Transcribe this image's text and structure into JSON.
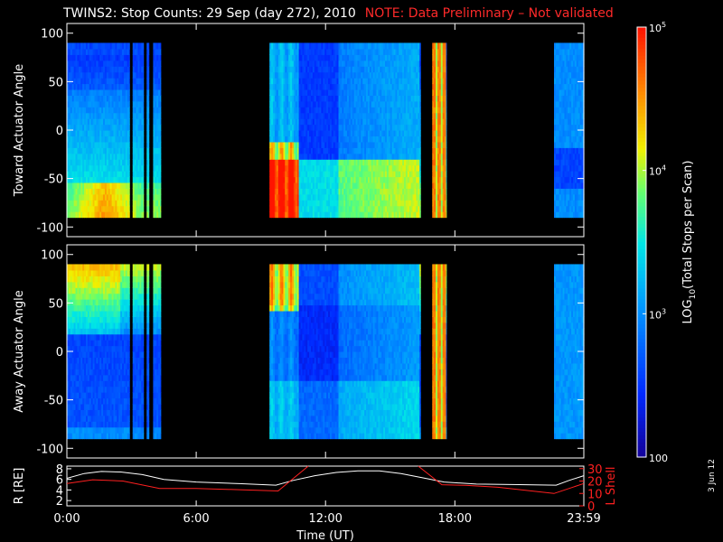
{
  "title": {
    "main": "TWINS2: Stop Counts: 29 Sep (day 272), 2010",
    "note": "NOTE: Data Preliminary – Not validated"
  },
  "date_stamp": "3 Jun 12",
  "colors": {
    "background": "#000000",
    "axes": "#ffffff",
    "note": "#ff2a2a",
    "r_line": "#ffffff",
    "lshell_line": "#ff2020"
  },
  "chart_data": [
    {
      "type": "heatmap",
      "panel": "top",
      "ylabel": "Toward Actuator Angle",
      "y_ticks": [
        -100,
        -50,
        0,
        50,
        100
      ],
      "ylim": [
        -110,
        110
      ],
      "x_range_hours": [
        0,
        23.983
      ],
      "y_data_range": [
        -90,
        90
      ],
      "data_intervals_hours": [
        [
          0.0,
          2.9
        ],
        [
          3.05,
          3.55
        ],
        [
          3.7,
          3.8
        ],
        [
          4.0,
          4.35
        ],
        [
          9.4,
          16.4
        ],
        [
          16.95,
          17.6
        ],
        [
          22.6,
          23.983
        ]
      ]
    },
    {
      "type": "heatmap",
      "panel": "middle",
      "ylabel": "Away Actuator Angle",
      "y_ticks": [
        -100,
        -50,
        0,
        50,
        100
      ],
      "ylim": [
        -110,
        110
      ],
      "x_range_hours": [
        0,
        23.983
      ],
      "y_data_range": [
        -90,
        90
      ],
      "data_intervals_hours": [
        [
          0.0,
          2.9
        ],
        [
          3.05,
          3.55
        ],
        [
          3.7,
          3.8
        ],
        [
          4.0,
          4.35
        ],
        [
          9.4,
          16.4
        ],
        [
          16.95,
          17.6
        ],
        [
          22.6,
          23.983
        ]
      ]
    },
    {
      "type": "line",
      "panel": "bottom",
      "xlabel": "Time (UT)",
      "x_tick_labels": [
        "0:00",
        "6:00",
        "12:00",
        "18:00",
        "23:59"
      ],
      "x_ticks_hours": [
        0,
        6,
        12,
        18,
        23.983
      ],
      "left_axis": {
        "label": "R [RE]",
        "ticks": [
          2,
          4,
          6,
          8
        ],
        "ylim": [
          1,
          8.5
        ]
      },
      "right_axis": {
        "label": "L Shell",
        "ticks": [
          0,
          10,
          20,
          30
        ],
        "ylim": [
          0,
          32
        ]
      },
      "series": [
        {
          "name": "R",
          "axis": "left",
          "color": "#ffffff",
          "x": [
            0,
            0.8,
            1.6,
            2.5,
            3.5,
            4.5,
            6,
            8,
            9.7,
            10.5,
            11.5,
            12.5,
            13.5,
            14.5,
            15.5,
            16.5,
            17.5,
            19,
            21,
            22.7,
            23.3,
            23.98
          ],
          "y": [
            6.2,
            7.1,
            7.5,
            7.4,
            6.9,
            6.0,
            5.5,
            5.2,
            4.9,
            5.8,
            6.7,
            7.3,
            7.6,
            7.6,
            7.1,
            6.3,
            5.5,
            5.1,
            5.0,
            4.9,
            5.8,
            6.7
          ]
        },
        {
          "name": "L Shell",
          "axis": "right",
          "color": "#ff2020",
          "segments": [
            {
              "x": [
                0,
                1.2,
                2.6,
                4.3,
                6,
                8,
                9.8,
                11.2
              ],
              "y": [
                18,
                21,
                20,
                14,
                14,
                13,
                12,
                32
              ]
            },
            {
              "x": [
                16.3,
                17.4,
                18.5,
                20,
                22.6,
                23.98
              ],
              "y": [
                32,
                17,
                16.5,
                15,
                10,
                18
              ]
            }
          ]
        }
      ]
    }
  ],
  "colorbar": {
    "label": "LOG10(Total Stops per Scan)",
    "label_parts": {
      "base": "LOG",
      "sub": "10",
      "rest": "(Total Stops per Scan)"
    },
    "tick_labels": [
      {
        "base": "10",
        "exp": "5",
        "value": 100000
      },
      {
        "base": "10",
        "exp": "4",
        "value": 10000
      },
      {
        "base": "10",
        "exp": "3",
        "value": 1000
      },
      {
        "base": "100",
        "exp": "",
        "value": 100
      }
    ],
    "range_log": [
      2,
      5
    ],
    "colormap": "rainbow (blue-cyan-green-yellow-red)"
  }
}
